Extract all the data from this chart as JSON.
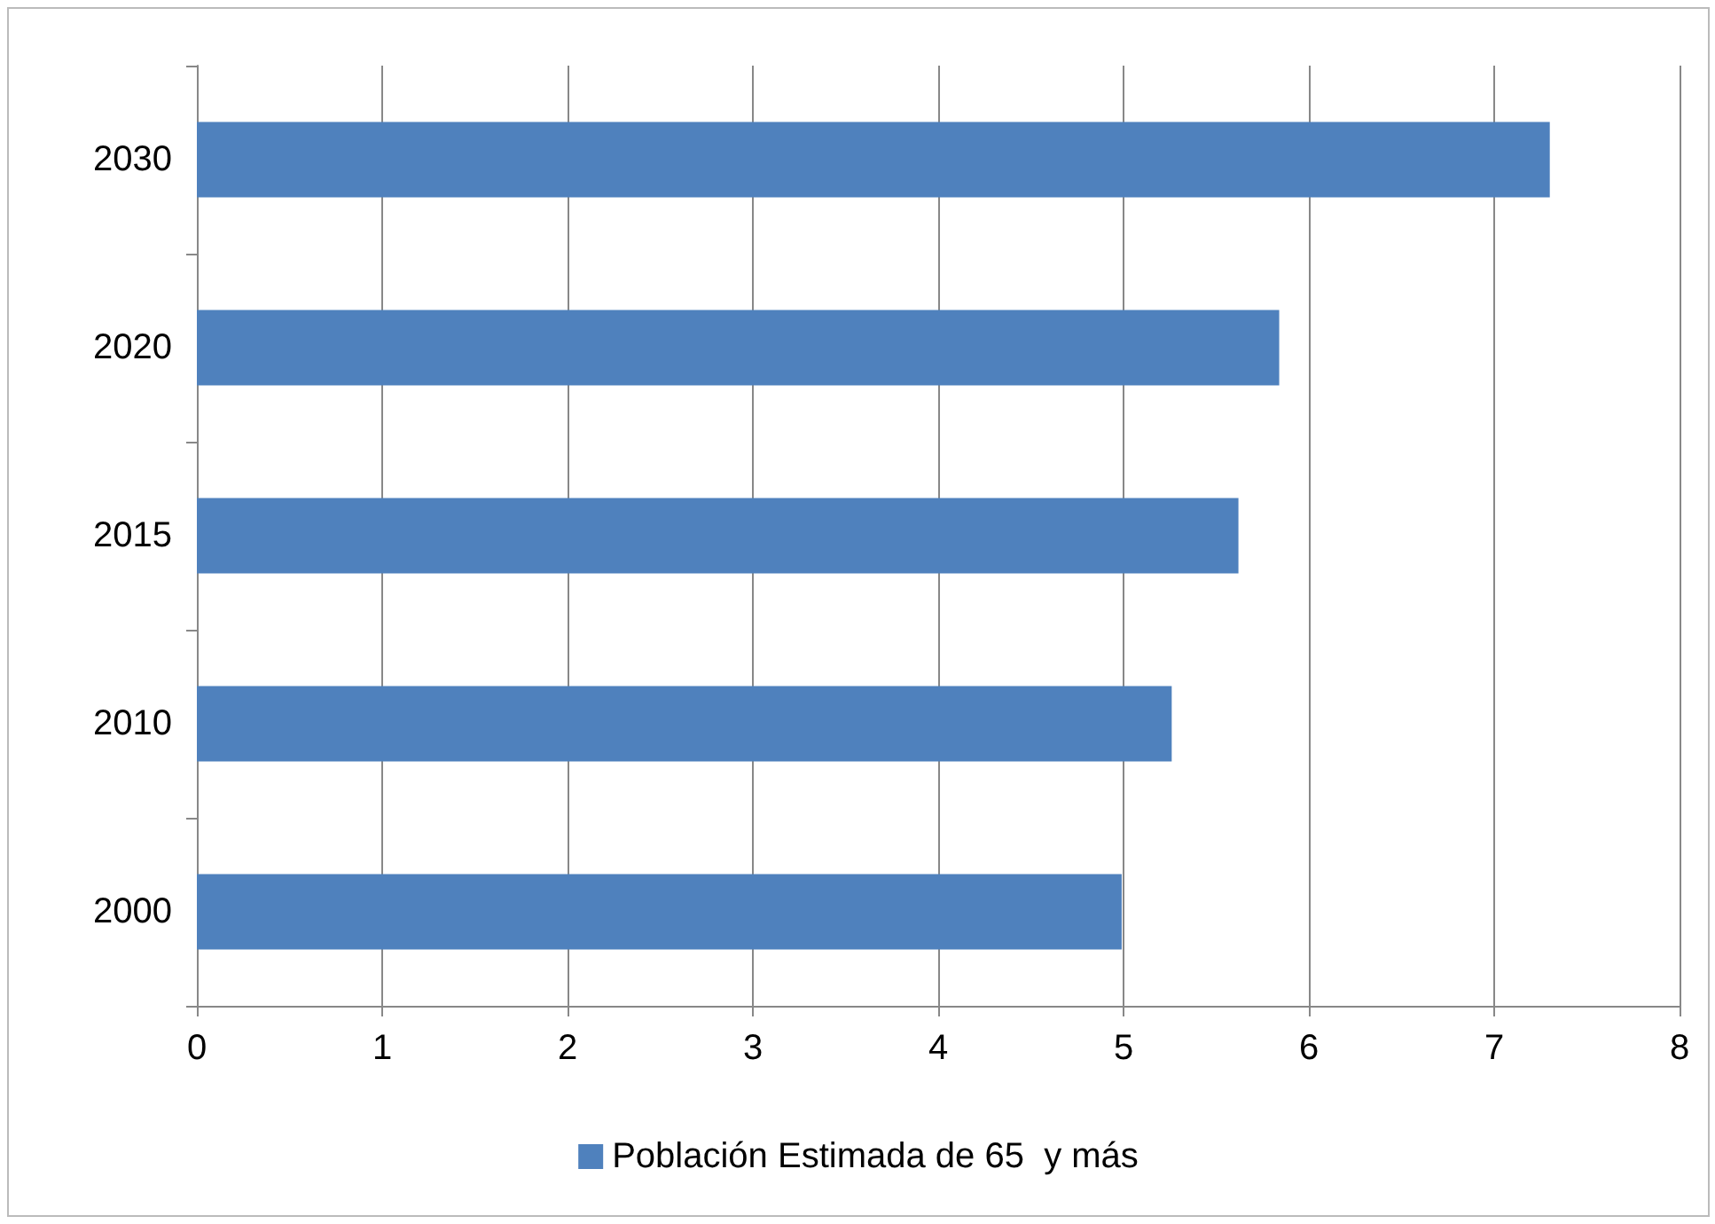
{
  "chart_data": {
    "type": "bar",
    "orientation": "horizontal",
    "categories": [
      "2030",
      "2020",
      "2015",
      "2010",
      "2000"
    ],
    "series": [
      {
        "name": "Población Estimada de 65  y más",
        "color": "#4f81bd",
        "values": [
          7.3,
          5.84,
          5.62,
          5.26,
          4.99
        ]
      }
    ],
    "xlim": [
      0,
      8
    ],
    "xticks": [
      0,
      1,
      2,
      3,
      4,
      5,
      6,
      7,
      8
    ],
    "grid": "x",
    "legend": "bottom"
  }
}
